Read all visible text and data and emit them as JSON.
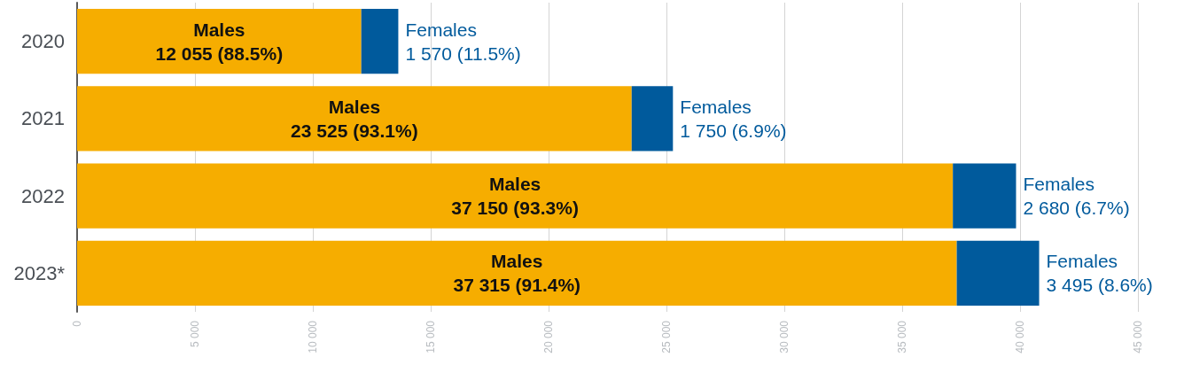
{
  "chart_data": {
    "type": "bar",
    "orientation": "horizontal",
    "stacked": true,
    "categories": [
      "2020",
      "2021",
      "2022",
      "2023*"
    ],
    "series": [
      {
        "name": "Males",
        "color": "#f6ad00",
        "values": [
          12055,
          23525,
          37150,
          37315
        ],
        "value_labels": [
          "12 055 (88.5%)",
          "23 525 (93.1%)",
          "37 150 (93.3%)",
          "37 315 (91.4%)"
        ]
      },
      {
        "name": "Females",
        "color": "#005a9c",
        "values": [
          1570,
          1750,
          2680,
          3495
        ],
        "value_labels": [
          "1 570 (11.5%)",
          "1 750 (6.9%)",
          "2 680 (6.7%)",
          "3 495 (8.6%)"
        ]
      }
    ],
    "xlim": [
      0,
      45000
    ],
    "xticks": [
      0,
      {
        "value": 5000,
        "label": "5 000"
      },
      {
        "value": 10000,
        "label": "10 000"
      },
      {
        "value": 15000,
        "label": "15 000"
      },
      {
        "value": 20000,
        "label": "20 000"
      },
      {
        "value": 25000,
        "label": "25 000"
      },
      {
        "value": 30000,
        "label": "30 000"
      },
      {
        "value": 35000,
        "label": "35 000"
      },
      {
        "value": 40000,
        "label": "40 000"
      },
      {
        "value": 45000,
        "label": "45 000"
      }
    ],
    "grid": "x",
    "legend": false
  }
}
